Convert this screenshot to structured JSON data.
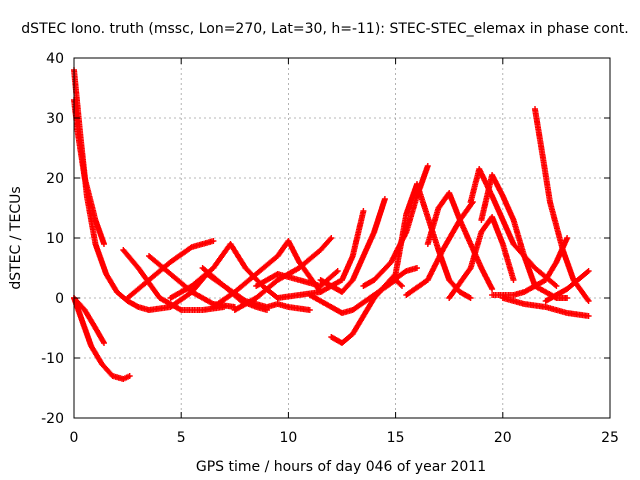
{
  "chart_data": {
    "type": "scatter",
    "title": "dSTEC Iono. truth (mssc, Lon=270, Lat=30, h=-11): STEC-STEC_elemax in phase cont.",
    "xlabel": "GPS time / hours of day 046 of year 2011",
    "ylabel": "dSTEC  / TECUs",
    "xlim": [
      0,
      25
    ],
    "ylim": [
      -20,
      40
    ],
    "xticks": [
      "0",
      "5",
      "10",
      "15",
      "20",
      "25"
    ],
    "yticks": [
      "-20",
      "-10",
      "0",
      "10",
      "20",
      "30",
      "40"
    ],
    "grid": true,
    "legend": "none",
    "marker": "+",
    "color": "#ff0000",
    "series": [
      {
        "x": [
          0,
          0.3,
          0.6,
          1.0,
          1.5,
          2.0,
          2.5,
          3.0,
          3.5
        ],
        "y": [
          38,
          27,
          17,
          9,
          4,
          1,
          -0.5,
          -1.5,
          -2
        ]
      },
      {
        "x": [
          0,
          0.2,
          0.5,
          1.0,
          1.4
        ],
        "y": [
          33,
          27,
          20,
          13,
          9
        ]
      },
      {
        "x": [
          0,
          0.4,
          0.8,
          1.3,
          1.8,
          2.3,
          2.6
        ],
        "y": [
          0,
          -4,
          -8,
          -11,
          -13,
          -13.5,
          -13
        ]
      },
      {
        "x": [
          0,
          0.5,
          1.0,
          1.4
        ],
        "y": [
          0,
          -2,
          -5,
          -7.5
        ]
      },
      {
        "x": [
          2.3,
          3.0,
          4.0,
          5.0,
          6.0,
          7.0
        ],
        "y": [
          8,
          5,
          0,
          -2,
          -2,
          -1.5
        ]
      },
      {
        "x": [
          2.5,
          3.5,
          4.5,
          5.5,
          6.5
        ],
        "y": [
          0,
          3,
          6,
          8.5,
          9.5
        ]
      },
      {
        "x": [
          3.5,
          4.5,
          5.5,
          6.5,
          7.5
        ],
        "y": [
          7,
          4,
          1,
          -1,
          -1.5
        ]
      },
      {
        "x": [
          3.5,
          4.5,
          5.5,
          6.2,
          7.0,
          7.8,
          8.5,
          9.0
        ],
        "y": [
          -2,
          -1.5,
          1,
          4,
          2,
          -0.5,
          -1.5,
          -2
        ]
      },
      {
        "x": [
          4.5,
          5.5,
          6.5,
          7.3,
          8.0,
          8.8,
          9.5
        ],
        "y": [
          0,
          2,
          5,
          9,
          5,
          2,
          0
        ]
      },
      {
        "x": [
          6.0,
          7.0,
          8.0,
          9.0,
          9.5,
          10.0,
          11.0
        ],
        "y": [
          5,
          2,
          -0.5,
          -1.5,
          -1,
          -1.5,
          -2
        ]
      },
      {
        "x": [
          6.5,
          7.5,
          8.5,
          9.5,
          10.0,
          10.5,
          11.5
        ],
        "y": [
          -1.5,
          1,
          4,
          7,
          9.5,
          6,
          1
        ]
      },
      {
        "x": [
          7.5,
          8.5,
          9.5,
          10.5,
          11.5,
          12.0
        ],
        "y": [
          -2,
          0,
          3,
          5,
          8,
          10
        ]
      },
      {
        "x": [
          8.5,
          9.5,
          10.5,
          11.5,
          12.3
        ],
        "y": [
          2,
          4,
          3,
          2,
          4.5
        ]
      },
      {
        "x": [
          9.5,
          10.5,
          11.5,
          12.5,
          13.0,
          13.5
        ],
        "y": [
          0,
          0.5,
          1,
          3,
          7,
          14.5
        ]
      },
      {
        "x": [
          11.5,
          12.0,
          12.5,
          13.0,
          13.5,
          14.0,
          14.5
        ],
        "y": [
          3,
          2,
          1,
          3,
          7,
          11,
          16.5
        ]
      },
      {
        "x": [
          11.0,
          12.0,
          12.5,
          13.0,
          14.0,
          15.0,
          15.3
        ],
        "y": [
          0.5,
          -1.5,
          -2.5,
          -2,
          0.5,
          3,
          2
        ]
      },
      {
        "x": [
          12.0,
          12.5,
          13.0,
          13.5,
          14.0,
          14.5,
          15.5,
          16.0
        ],
        "y": [
          -6.5,
          -7.5,
          -6,
          -3,
          0,
          2,
          4.5,
          5
        ]
      },
      {
        "x": [
          13.5,
          14.0,
          14.8,
          15.5,
          16.0,
          16.5
        ],
        "y": [
          2,
          3,
          6,
          11,
          17,
          22
        ]
      },
      {
        "x": [
          14.0,
          15.0,
          15.5,
          16.0,
          17.0,
          17.5,
          18.0,
          18.5
        ],
        "y": [
          0,
          4,
          14,
          19,
          8,
          3,
          1,
          0
        ]
      },
      {
        "x": [
          15.5,
          16.5,
          17.2,
          18.0,
          18.6
        ],
        "y": [
          0.5,
          3,
          8,
          13,
          16
        ]
      },
      {
        "x": [
          16.5,
          17.0,
          17.5,
          18.0,
          19.0,
          19.5
        ],
        "y": [
          9,
          15,
          17.5,
          13,
          5,
          1.5
        ]
      },
      {
        "x": [
          17.5,
          18.5,
          19.0,
          19.5,
          20.0,
          20.5
        ],
        "y": [
          0,
          5,
          11,
          13.5,
          9,
          3
        ]
      },
      {
        "x": [
          18.5,
          18.9,
          19.5,
          20.0,
          20.5,
          21.5,
          22.5
        ],
        "y": [
          16,
          21.5,
          17,
          13,
          9,
          5,
          2
        ]
      },
      {
        "x": [
          19.0,
          19.5,
          20.0,
          20.5,
          21.0,
          21.5,
          22.5,
          23.0
        ],
        "y": [
          13,
          20.5,
          17,
          13,
          7,
          2,
          0,
          0
        ]
      },
      {
        "x": [
          19.5,
          20.5,
          21.0,
          22.0,
          22.5,
          23.0
        ],
        "y": [
          0.5,
          0.5,
          1,
          3,
          6,
          10
        ]
      },
      {
        "x": [
          20.0,
          20.5,
          21.0,
          22.0,
          23.0,
          24.0
        ],
        "y": [
          0,
          -0.5,
          -1,
          -1.5,
          -2.5,
          -3
        ]
      },
      {
        "x": [
          21.5,
          21.8,
          22.2,
          22.8,
          23.3,
          24.0
        ],
        "y": [
          31.5,
          25,
          16,
          8,
          3,
          -0.5
        ]
      },
      {
        "x": [
          22.0,
          22.5,
          23.0,
          23.5,
          24.0
        ],
        "y": [
          -0.5,
          0.5,
          1.5,
          3,
          4.5
        ]
      }
    ]
  }
}
